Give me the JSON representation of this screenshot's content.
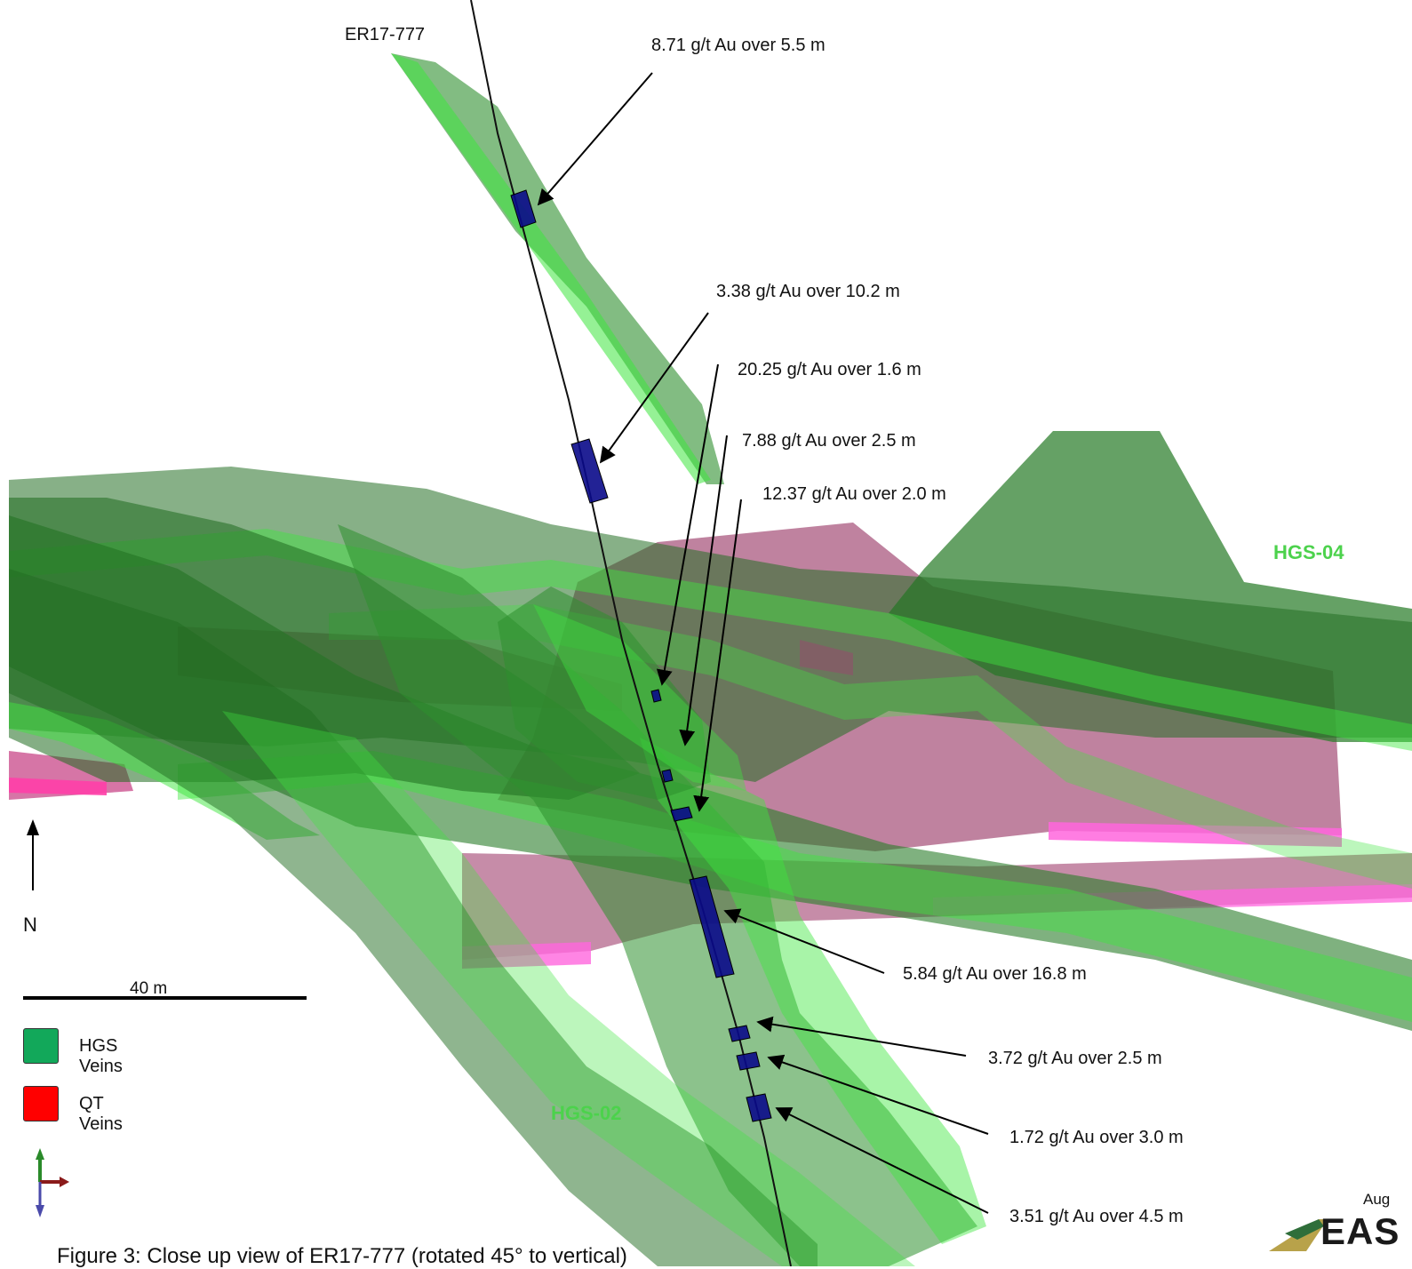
{
  "hole": {
    "id": "ER17-777"
  },
  "intercepts": [
    {
      "text": "8.71 g/t Au over 5.5 m"
    },
    {
      "text": "3.38 g/t Au over 10.2 m"
    },
    {
      "text": "20.25 g/t Au over 1.6 m"
    },
    {
      "text": "7.88 g/t Au over 2.5 m"
    },
    {
      "text": "12.37 g/t Au over 2.0 m"
    },
    {
      "text": "5.84 g/t Au over 16.8 m"
    },
    {
      "text": "3.72 g/t Au over 2.5 m"
    },
    {
      "text": "1.72 g/t Au over 3.0 m"
    },
    {
      "text": "3.51 g/t Au over 4.5 m"
    }
  ],
  "zones": {
    "hgs04": "HGS-04",
    "hgs02": "HGS-02"
  },
  "north": {
    "label": "N"
  },
  "scale": {
    "label": "40 m"
  },
  "legend": {
    "hgs": {
      "label": "HGS Veins",
      "color": "#12a85a"
    },
    "qt": {
      "label": "QT Veins",
      "color": "#ff0000"
    }
  },
  "caption": "Figure 3: Close up view of ER17-777 (rotated 45° to vertical)",
  "date": "Aug",
  "logo": {
    "text": "EAS"
  },
  "colors": {
    "hgs_vein": "#2f8f2f",
    "hgs_vein_bright": "#3ee63e",
    "qt_vein": "#b04a78",
    "qt_vein_edge": "#ff4fc8",
    "intercept": "#0a0a8a",
    "zone_label": "#4cd24c"
  }
}
